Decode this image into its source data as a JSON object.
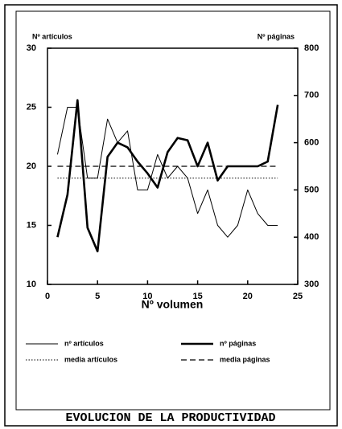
{
  "chart_data": {
    "type": "line",
    "title": "EVOLUCION DE LA PRODUCTIVIDAD",
    "ylabel": "Nº artículos",
    "y2label": "Nº páginas",
    "xlabel": "Nº volumen",
    "x": [
      1,
      2,
      3,
      4,
      5,
      6,
      7,
      8,
      9,
      10,
      11,
      12,
      13,
      14,
      15,
      16,
      17,
      18,
      19,
      20,
      21,
      22,
      23
    ],
    "series": [
      {
        "name": "nº artículos",
        "color": "#000000",
        "line_width": 1,
        "line_style": "solid",
        "values": [
          21,
          25,
          25,
          19,
          19,
          24,
          22,
          23,
          18,
          18,
          21,
          19,
          20,
          19,
          16,
          18,
          15,
          14,
          15,
          18,
          16,
          15,
          15
        ]
      },
      {
        "name": "nº páginas",
        "color": "#000000",
        "line_width": 2.6,
        "line_style": "solid",
        "axis": "y2",
        "values": [
          400,
          490,
          690,
          420,
          370,
          570,
          600,
          590,
          560,
          535,
          505,
          580,
          610,
          605,
          550,
          600,
          520,
          550,
          550,
          550,
          550,
          560,
          680
        ]
      },
      {
        "name": "media artículos",
        "color": "#000000",
        "line_width": 1,
        "line_style": "dotted",
        "values": [
          19,
          19,
          19,
          19,
          19,
          19,
          19,
          19,
          19,
          19,
          19,
          19,
          19,
          19,
          19,
          19,
          19,
          19,
          19,
          19,
          19,
          19,
          19
        ]
      },
      {
        "name": "media páginas",
        "color": "#000000",
        "line_width": 1.3,
        "line_style": "dashed",
        "axis": "y2",
        "values": [
          550,
          550,
          550,
          550,
          550,
          550,
          550,
          550,
          550,
          550,
          550,
          550,
          550,
          550,
          550,
          550,
          550,
          550,
          550,
          550,
          550,
          550,
          550
        ]
      }
    ],
    "xlim": [
      0,
      25
    ],
    "xticks": [
      0,
      5,
      10,
      15,
      20,
      25
    ],
    "ylim": [
      10,
      30
    ],
    "yticks": [
      10,
      15,
      20,
      25,
      30
    ],
    "y2lim": [
      300,
      800
    ],
    "y2ticks": [
      300,
      400,
      500,
      600,
      700,
      800
    ]
  }
}
